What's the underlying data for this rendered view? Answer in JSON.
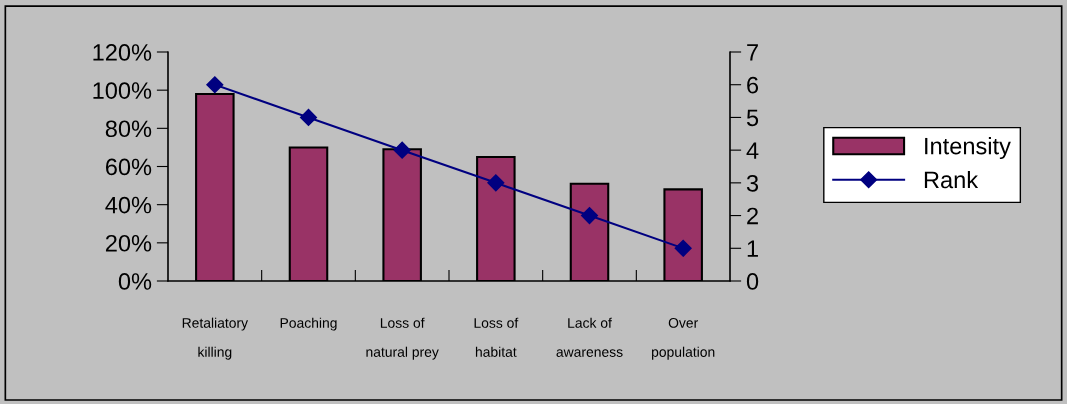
{
  "chart_data": {
    "type": "bar",
    "categories": [
      "Retaliatory\nkilling",
      "Poaching",
      "Loss of\nnatural prey",
      "Loss of\nhabitat",
      "Lack of\nawareness",
      "Over\npopulation"
    ],
    "series": [
      {
        "name": "Intensity",
        "color": "#993366",
        "values": [
          98,
          70,
          69,
          65,
          51,
          48
        ]
      },
      {
        "name": "Rank",
        "type": "line",
        "axis": "y2",
        "color": "#000080",
        "marker": "diamond",
        "values": [
          6,
          5,
          4,
          3,
          2,
          1
        ]
      }
    ],
    "ylim": [
      0,
      120
    ],
    "yticks": [
      {
        "value": 0,
        "label": "0%"
      },
      {
        "value": 20,
        "label": "20%"
      },
      {
        "value": 40,
        "label": "40%"
      },
      {
        "value": 60,
        "label": "60%"
      },
      {
        "value": 80,
        "label": "80%"
      },
      {
        "value": 100,
        "label": "100%"
      },
      {
        "value": 120,
        "label": "120%"
      }
    ],
    "y2lim": [
      0,
      7
    ],
    "y2ticks": [
      0,
      1,
      2,
      3,
      4,
      5,
      6,
      7
    ],
    "grid": false,
    "legend": "right"
  }
}
